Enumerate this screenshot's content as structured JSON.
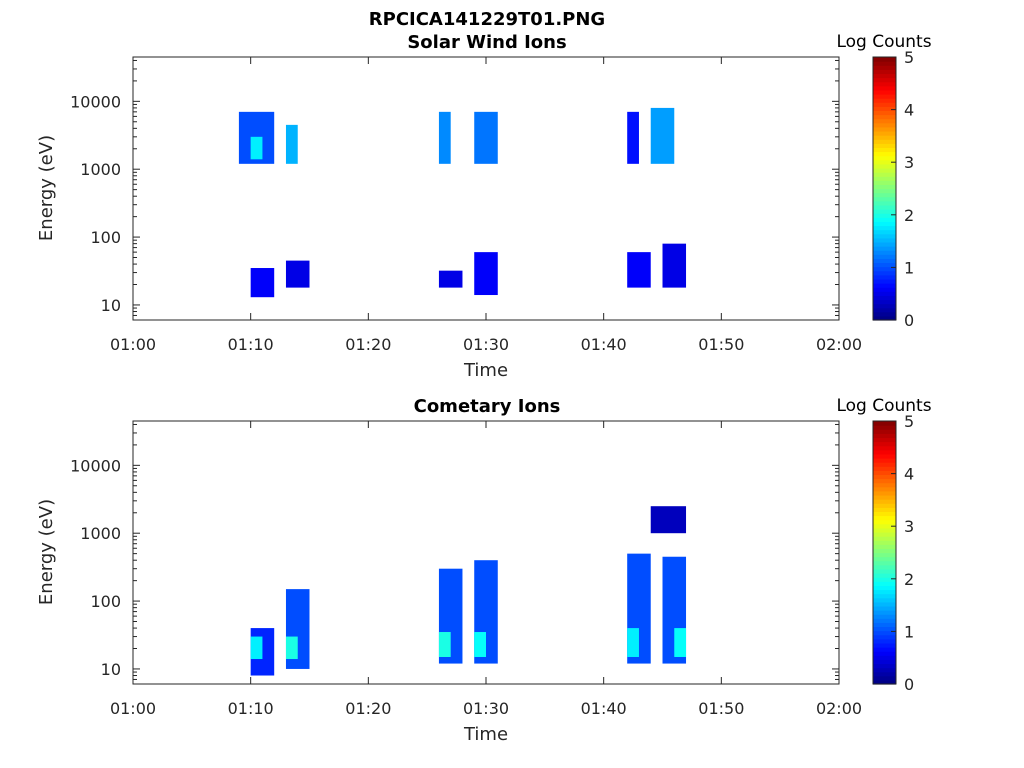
{
  "figure_title": "RPCICA141229T01.PNG",
  "chart_data": [
    {
      "type": "heatmap",
      "title": "Solar Wind Ions",
      "xlabel": "Time",
      "ylabel": "Energy (eV)",
      "x_range": [
        "01:00",
        "02:00"
      ],
      "x_ticks": [
        "01:00",
        "01:10",
        "01:20",
        "01:30",
        "01:40",
        "01:50",
        "02:00"
      ],
      "y_scale": "log",
      "y_range": [
        6,
        45000
      ],
      "y_ticks": [
        "10",
        "100",
        "1000",
        "10000"
      ],
      "colorbar": {
        "label": "Log Counts",
        "range": [
          0,
          5
        ],
        "ticks": [
          "0",
          "1",
          "2",
          "3",
          "4",
          "5"
        ]
      },
      "cells": [
        {
          "t0": "01:09",
          "t1": "01:12",
          "e0": 1200,
          "e1": 7000,
          "log_counts": 1.0
        },
        {
          "t0": "01:10",
          "t1": "01:11",
          "e0": 1400,
          "e1": 3000,
          "log_counts": 1.8
        },
        {
          "t0": "01:13",
          "t1": "01:14",
          "e0": 1200,
          "e1": 4500,
          "log_counts": 1.5
        },
        {
          "t0": "01:10",
          "t1": "01:12",
          "e0": 13,
          "e1": 35,
          "log_counts": 0.6
        },
        {
          "t0": "01:13",
          "t1": "01:15",
          "e0": 18,
          "e1": 45,
          "log_counts": 0.5
        },
        {
          "t0": "01:26",
          "t1": "01:27",
          "e0": 1200,
          "e1": 7000,
          "log_counts": 1.3
        },
        {
          "t0": "01:29",
          "t1": "01:31",
          "e0": 1200,
          "e1": 7000,
          "log_counts": 1.2
        },
        {
          "t0": "01:26",
          "t1": "01:28",
          "e0": 18,
          "e1": 32,
          "log_counts": 0.5
        },
        {
          "t0": "01:29",
          "t1": "01:31",
          "e0": 14,
          "e1": 60,
          "log_counts": 0.6
        },
        {
          "t0": "01:42",
          "t1": "01:43",
          "e0": 1200,
          "e1": 7000,
          "log_counts": 0.7
        },
        {
          "t0": "01:44",
          "t1": "01:46",
          "e0": 1200,
          "e1": 8000,
          "log_counts": 1.4
        },
        {
          "t0": "01:42",
          "t1": "01:44",
          "e0": 18,
          "e1": 60,
          "log_counts": 0.6
        },
        {
          "t0": "01:45",
          "t1": "01:47",
          "e0": 18,
          "e1": 80,
          "log_counts": 0.5
        }
      ]
    },
    {
      "type": "heatmap",
      "title": "Cometary Ions",
      "xlabel": "Time",
      "ylabel": "Energy (eV)",
      "x_range": [
        "01:00",
        "02:00"
      ],
      "x_ticks": [
        "01:00",
        "01:10",
        "01:20",
        "01:30",
        "01:40",
        "01:50",
        "02:00"
      ],
      "y_scale": "log",
      "y_range": [
        6,
        45000
      ],
      "y_ticks": [
        "10",
        "100",
        "1000",
        "10000"
      ],
      "colorbar": {
        "label": "Log Counts",
        "range": [
          0,
          5
        ],
        "ticks": [
          "0",
          "1",
          "2",
          "3",
          "4",
          "5"
        ]
      },
      "cells": [
        {
          "t0": "01:10",
          "t1": "01:12",
          "e0": 8,
          "e1": 40,
          "log_counts": 0.8
        },
        {
          "t0": "01:10",
          "t1": "01:11",
          "e0": 14,
          "e1": 30,
          "log_counts": 1.8
        },
        {
          "t0": "01:13",
          "t1": "01:15",
          "e0": 10,
          "e1": 150,
          "log_counts": 1.0
        },
        {
          "t0": "01:13",
          "t1": "01:14",
          "e0": 14,
          "e1": 30,
          "log_counts": 2.0
        },
        {
          "t0": "01:26",
          "t1": "01:28",
          "e0": 12,
          "e1": 300,
          "log_counts": 1.0
        },
        {
          "t0": "01:26",
          "t1": "01:27",
          "e0": 15,
          "e1": 35,
          "log_counts": 2.0
        },
        {
          "t0": "01:29",
          "t1": "01:31",
          "e0": 12,
          "e1": 400,
          "log_counts": 1.0
        },
        {
          "t0": "01:29",
          "t1": "01:30",
          "e0": 15,
          "e1": 35,
          "log_counts": 1.9
        },
        {
          "t0": "01:42",
          "t1": "01:44",
          "e0": 12,
          "e1": 500,
          "log_counts": 1.0
        },
        {
          "t0": "01:42",
          "t1": "01:43",
          "e0": 15,
          "e1": 40,
          "log_counts": 1.8
        },
        {
          "t0": "01:45",
          "t1": "01:47",
          "e0": 12,
          "e1": 450,
          "log_counts": 1.0
        },
        {
          "t0": "01:46",
          "t1": "01:47",
          "e0": 15,
          "e1": 40,
          "log_counts": 1.9
        },
        {
          "t0": "01:44",
          "t1": "01:47",
          "e0": 1000,
          "e1": 2500,
          "log_counts": 0.3
        }
      ]
    }
  ]
}
